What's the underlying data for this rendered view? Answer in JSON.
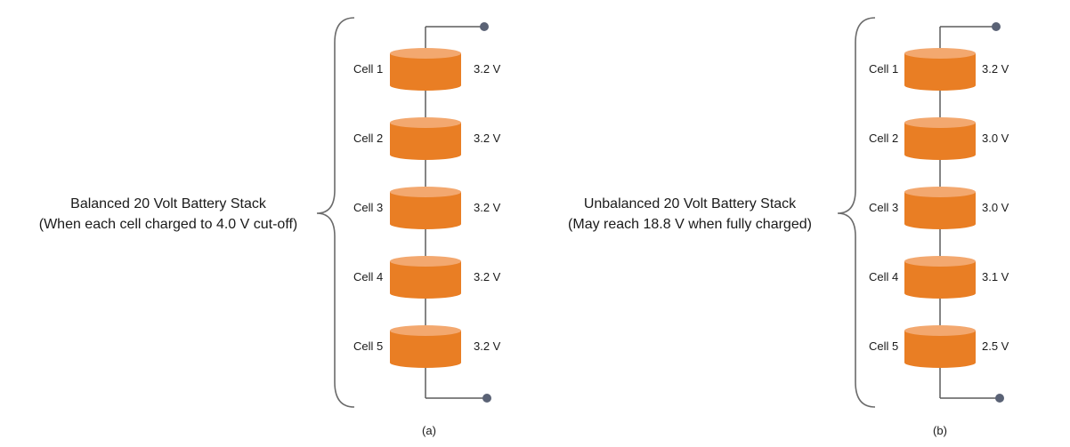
{
  "colors": {
    "cell_body": "#e97e24",
    "cell_top": "#f3a86f",
    "wire": "#5c5c5c",
    "terminal": "#5a6275",
    "brace": "#6b6b6b"
  },
  "stacks": [
    {
      "title_lines": [
        "Balanced 20 Volt Battery Stack",
        "(When each cell charged to 4.0 V cut-off)"
      ],
      "caption": "(a)",
      "cells": [
        {
          "label": "Cell 1",
          "voltage": "3.2 V"
        },
        {
          "label": "Cell 2",
          "voltage": "3.2 V"
        },
        {
          "label": "Cell 3",
          "voltage": "3.2 V"
        },
        {
          "label": "Cell 4",
          "voltage": "3.2 V"
        },
        {
          "label": "Cell 5",
          "voltage": "3.2 V"
        }
      ]
    },
    {
      "title_lines": [
        "Unbalanced 20 Volt Battery Stack",
        "(May reach 18.8 V when fully charged)"
      ],
      "caption": "(b)",
      "cells": [
        {
          "label": "Cell 1",
          "voltage": "3.2 V"
        },
        {
          "label": "Cell 2",
          "voltage": "3.0 V"
        },
        {
          "label": "Cell 3",
          "voltage": "3.0 V"
        },
        {
          "label": "Cell 4",
          "voltage": "3.1 V"
        },
        {
          "label": "Cell 5",
          "voltage": "2.5 V"
        }
      ]
    }
  ]
}
